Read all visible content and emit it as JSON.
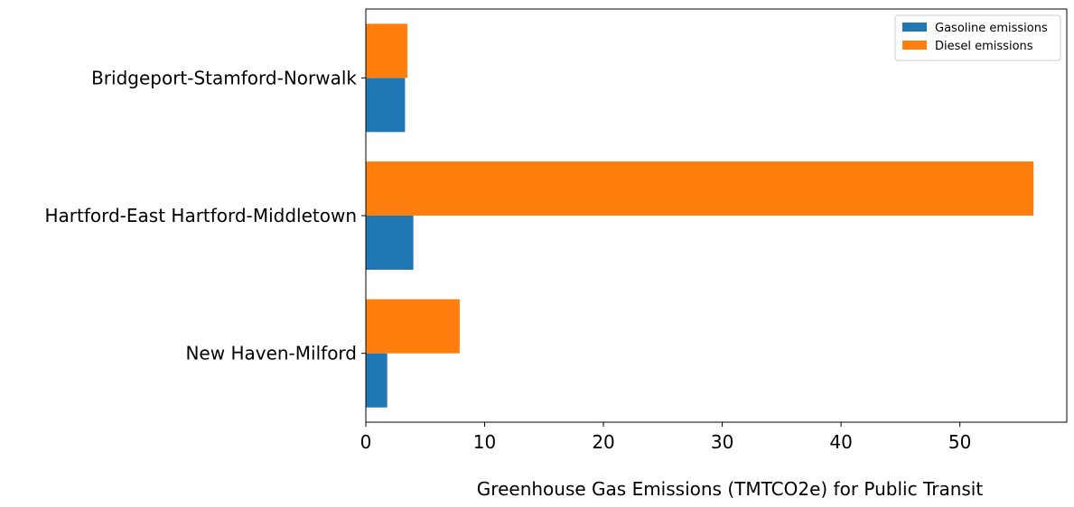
{
  "chart_data": {
    "type": "bar",
    "orientation": "horizontal",
    "categories": [
      "Bridgeport-Stamford-Norwalk",
      "Hartford-East Hartford-Middletown",
      "New Haven-Milford"
    ],
    "series": [
      {
        "name": "Gasoline emissions",
        "color": "#1f77b4",
        "values": [
          3.3,
          4.0,
          1.8
        ]
      },
      {
        "name": "Diesel emissions",
        "color": "#ff7f0e",
        "values": [
          3.5,
          56.2,
          7.9
        ]
      }
    ],
    "title": "",
    "xlabel": "Greenhouse Gas Emissions (TMTCO2e) for Public Transit",
    "ylabel": "",
    "xlim": [
      0,
      59
    ],
    "xticks": [
      0,
      10,
      20,
      30,
      40,
      50
    ],
    "grid": false,
    "legend_position": "top-right"
  }
}
